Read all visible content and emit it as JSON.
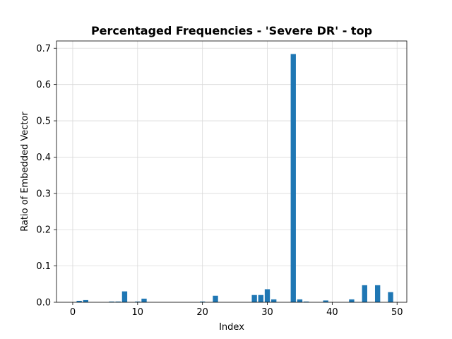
{
  "chart_data": {
    "type": "bar",
    "title": "Percentaged Frequencies - 'Severe DR' - top",
    "xlabel": "Index",
    "ylabel": "Ratio of Embedded Vector",
    "xlim": [
      -2.5,
      51.5
    ],
    "ylim": [
      0,
      0.72
    ],
    "xticks": [
      0,
      10,
      20,
      30,
      40,
      50
    ],
    "yticks": [
      0.0,
      0.1,
      0.2,
      0.3,
      0.4,
      0.5,
      0.6,
      0.7
    ],
    "grid": true,
    "color": "#1f77b4",
    "x": [
      0,
      1,
      2,
      3,
      4,
      5,
      6,
      7,
      8,
      9,
      10,
      11,
      12,
      13,
      14,
      15,
      16,
      17,
      18,
      19,
      20,
      21,
      22,
      23,
      24,
      25,
      26,
      27,
      28,
      29,
      30,
      31,
      32,
      33,
      34,
      35,
      36,
      37,
      38,
      39,
      40,
      41,
      42,
      43,
      44,
      45,
      46,
      47,
      48,
      49
    ],
    "values": [
      0,
      0.004,
      0.006,
      0,
      0,
      0,
      0.002,
      0.002,
      0.03,
      0,
      0.002,
      0.01,
      0,
      0,
      0,
      0,
      0,
      0,
      0,
      0,
      0.002,
      0,
      0.018,
      0,
      0,
      0,
      0,
      0,
      0.02,
      0.02,
      0.036,
      0.008,
      0,
      0,
      0.684,
      0.008,
      0.002,
      0,
      0,
      0.005,
      0,
      0,
      0,
      0.008,
      0,
      0.047,
      0,
      0.047,
      0,
      0.028
    ]
  }
}
